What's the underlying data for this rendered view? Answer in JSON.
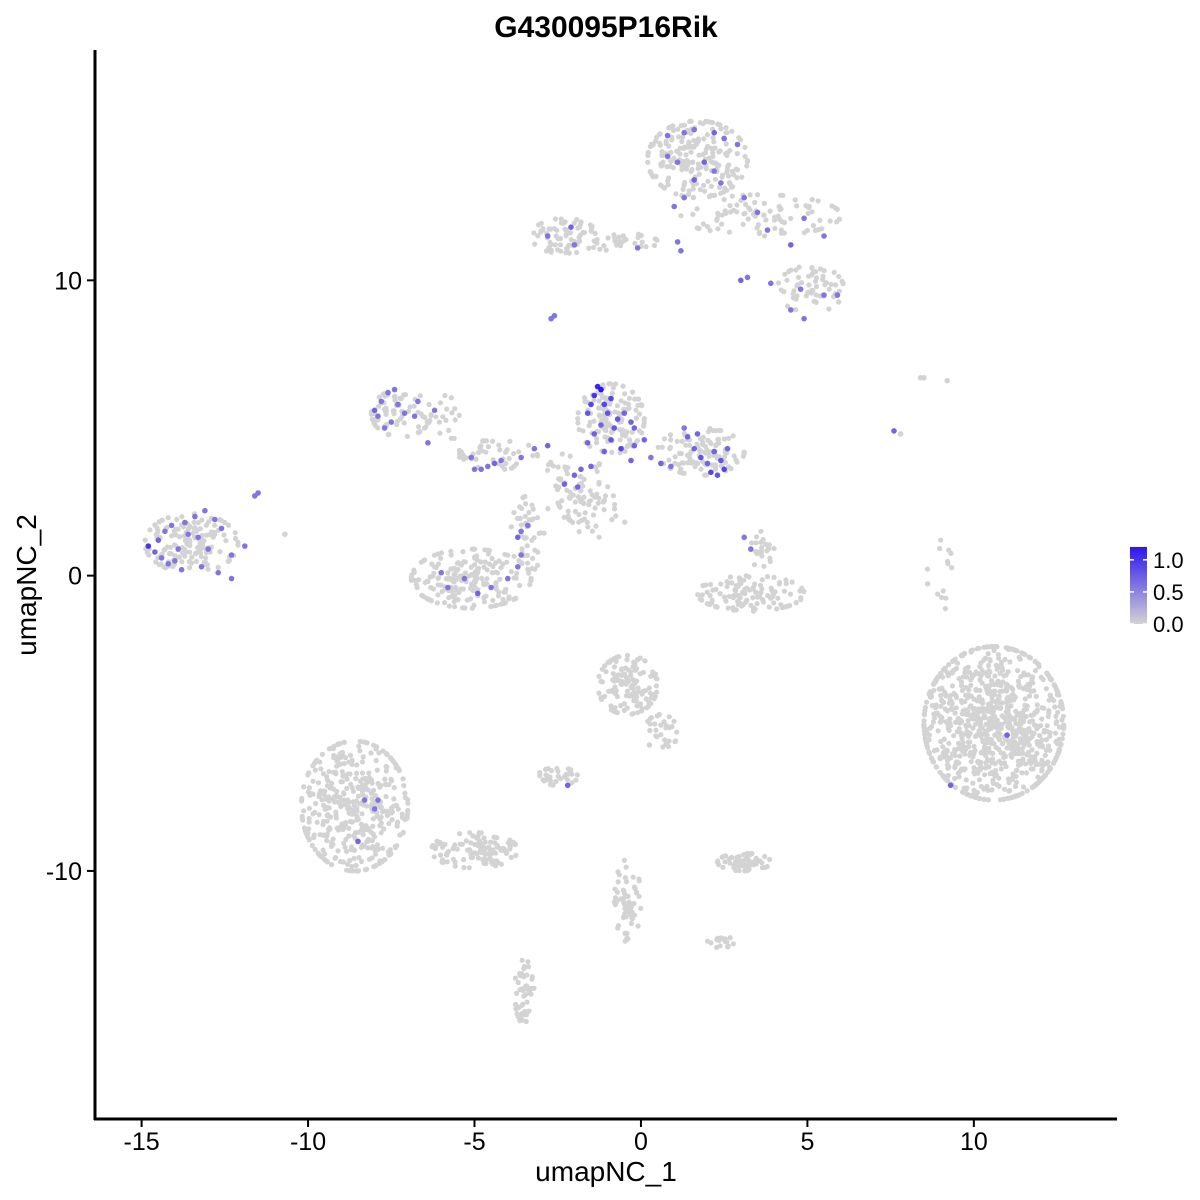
{
  "chart_data": {
    "type": "scatter",
    "title": "G430095P16Rik",
    "xlabel": "umapNC_1",
    "ylabel": "umapNC_2",
    "xlim": [
      -16.4,
      14.3
    ],
    "ylim": [
      -18.4,
      17.8
    ],
    "x_ticks": [
      -15,
      -10,
      -5,
      0,
      5,
      10
    ],
    "x_tick_labels": [
      "-15",
      "-10",
      "-5",
      "0",
      "5",
      "10"
    ],
    "y_ticks": [
      -10,
      0,
      10
    ],
    "y_tick_labels": [
      "-10",
      "0",
      "10"
    ],
    "grid": false,
    "legend_position": "right",
    "color_scale": {
      "low": "#d3d3d3",
      "high": "#2c16f0",
      "range": [
        0,
        1.2
      ],
      "breaks": [
        0.0,
        0.5,
        1.0
      ],
      "break_labels": [
        "0.0",
        "0.5",
        "1.0"
      ]
    },
    "background_clusters": [
      {
        "cx": 1.7,
        "cy": 14.1,
        "rx": 1.5,
        "ry": 1.3,
        "n": 210
      },
      {
        "cx": 3.6,
        "cy": 12.2,
        "rx": 2.4,
        "ry": 0.7,
        "n": 90
      },
      {
        "cx": 5.1,
        "cy": 9.7,
        "rx": 1.0,
        "ry": 0.8,
        "n": 60
      },
      {
        "cx": -2.3,
        "cy": 11.5,
        "rx": 1.0,
        "ry": 0.6,
        "n": 70
      },
      {
        "cx": -0.6,
        "cy": 11.3,
        "rx": 1.1,
        "ry": 0.3,
        "n": 30
      },
      {
        "cx": -7.2,
        "cy": 5.5,
        "rx": 0.9,
        "ry": 0.8,
        "n": 70
      },
      {
        "cx": -13.5,
        "cy": 1.1,
        "rx": 1.4,
        "ry": 1.0,
        "n": 150
      },
      {
        "cx": -5.1,
        "cy": -0.1,
        "rx": 1.8,
        "ry": 1.0,
        "n": 200
      },
      {
        "cx": -3.4,
        "cy": 1.4,
        "rx": 0.5,
        "ry": 1.3,
        "n": 45
      },
      {
        "cx": -0.9,
        "cy": 5.3,
        "rx": 1.0,
        "ry": 1.2,
        "n": 130
      },
      {
        "cx": 1.8,
        "cy": 4.2,
        "rx": 1.3,
        "ry": 0.8,
        "n": 110
      },
      {
        "cx": -2.0,
        "cy": 3.0,
        "rx": 1.0,
        "ry": 1.2,
        "n": 60
      },
      {
        "cx": 3.3,
        "cy": -0.6,
        "rx": 1.6,
        "ry": 0.6,
        "n": 120
      },
      {
        "cx": 3.6,
        "cy": 0.9,
        "rx": 0.4,
        "ry": 0.6,
        "n": 25
      },
      {
        "cx": 10.6,
        "cy": -5.0,
        "rx": 2.1,
        "ry": 2.6,
        "n": 900
      },
      {
        "cx": -0.4,
        "cy": -3.7,
        "rx": 0.9,
        "ry": 1.0,
        "n": 140
      },
      {
        "cx": 0.6,
        "cy": -5.3,
        "rx": 0.5,
        "ry": 0.6,
        "n": 30
      },
      {
        "cx": -8.6,
        "cy": -7.8,
        "rx": 1.6,
        "ry": 2.2,
        "n": 420
      },
      {
        "cx": -5.0,
        "cy": -9.3,
        "rx": 1.3,
        "ry": 0.6,
        "n": 110
      },
      {
        "cx": 3.1,
        "cy": -9.7,
        "rx": 0.8,
        "ry": 0.3,
        "n": 60
      },
      {
        "cx": -2.5,
        "cy": -6.8,
        "rx": 0.6,
        "ry": 0.3,
        "n": 30
      },
      {
        "cx": -3.5,
        "cy": -14.1,
        "rx": 0.3,
        "ry": 1.1,
        "n": 50
      },
      {
        "cx": -0.4,
        "cy": -11.0,
        "rx": 0.4,
        "ry": 1.4,
        "n": 60
      },
      {
        "cx": 2.4,
        "cy": -12.4,
        "rx": 0.4,
        "ry": 0.2,
        "n": 18
      },
      {
        "cx": -4.3,
        "cy": 4.1,
        "rx": 1.2,
        "ry": 0.5,
        "n": 45
      },
      {
        "cx": -5.9,
        "cy": 5.3,
        "rx": 0.5,
        "ry": 0.8,
        "n": 16
      },
      {
        "cx": 9.0,
        "cy": 0.0,
        "rx": 0.4,
        "ry": 1.2,
        "n": 14
      },
      {
        "cx": -1.3,
        "cy": 2.2,
        "rx": 0.9,
        "ry": 0.9,
        "n": 30
      }
    ],
    "points": [
      {
        "x": 8.5,
        "y": 6.7,
        "v": 0
      },
      {
        "x": 8.4,
        "y": 6.7,
        "v": 0
      },
      {
        "x": 7.6,
        "y": 4.9,
        "v": 0.7
      },
      {
        "x": 7.8,
        "y": 4.8,
        "v": 0
      },
      {
        "x": 9.2,
        "y": 6.6,
        "v": 0
      },
      {
        "x": 9.9,
        "y": -6.0,
        "v": 0
      },
      {
        "x": -11.5,
        "y": 2.8,
        "v": 0.6
      },
      {
        "x": -11.6,
        "y": 2.7,
        "v": 0.6
      },
      {
        "x": -10.7,
        "y": 1.4,
        "v": 0
      },
      {
        "x": -11.9,
        "y": 1.0,
        "v": 0.6
      },
      {
        "x": -12.3,
        "y": -0.1,
        "v": 0.6
      },
      {
        "x": -12.7,
        "y": 0.1,
        "v": 0.6
      },
      {
        "x": -13.8,
        "y": 0.2,
        "v": 0.6
      },
      {
        "x": -14.2,
        "y": 0.4,
        "v": 0.6
      },
      {
        "x": -14.6,
        "y": 0.8,
        "v": 0.7
      },
      {
        "x": -14.8,
        "y": 1.0,
        "v": 1.0
      },
      {
        "x": -14.3,
        "y": 1.5,
        "v": 0.6
      },
      {
        "x": -14.1,
        "y": 1.7,
        "v": 0.6
      },
      {
        "x": -13.7,
        "y": 1.8,
        "v": 0.6
      },
      {
        "x": -13.4,
        "y": 2.0,
        "v": 0.6
      },
      {
        "x": -13.1,
        "y": 2.2,
        "v": 0.6
      },
      {
        "x": -12.8,
        "y": 1.9,
        "v": 0.6
      },
      {
        "x": -13.3,
        "y": 1.3,
        "v": 0.6
      },
      {
        "x": -13.9,
        "y": 0.9,
        "v": 0.6
      },
      {
        "x": -14.4,
        "y": 0.6,
        "v": 0.6
      },
      {
        "x": -13.0,
        "y": 0.9,
        "v": 0.6
      },
      {
        "x": -12.3,
        "y": 0.7,
        "v": 0.6
      },
      {
        "x": -14.5,
        "y": 1.2,
        "v": 0.7
      },
      {
        "x": -13.6,
        "y": 1.4,
        "v": 0.6
      },
      {
        "x": -13.2,
        "y": 0.3,
        "v": 0.6
      },
      {
        "x": -12.6,
        "y": 1.6,
        "v": 0.6
      },
      {
        "x": -14.0,
        "y": 0.5,
        "v": 0.6
      },
      {
        "x": -7.6,
        "y": 6.2,
        "v": 0.6
      },
      {
        "x": -7.4,
        "y": 6.3,
        "v": 0.6
      },
      {
        "x": -7.8,
        "y": 5.9,
        "v": 0.6
      },
      {
        "x": -8.0,
        "y": 5.6,
        "v": 0.7
      },
      {
        "x": -7.9,
        "y": 5.4,
        "v": 0.6
      },
      {
        "x": -7.5,
        "y": 5.2,
        "v": 0.6
      },
      {
        "x": -7.1,
        "y": 5.5,
        "v": 0.6
      },
      {
        "x": -6.8,
        "y": 5.4,
        "v": 0.6
      },
      {
        "x": -6.7,
        "y": 5.9,
        "v": 0.6
      },
      {
        "x": -7.3,
        "y": 5.8,
        "v": 0.6
      },
      {
        "x": -7.7,
        "y": 5.0,
        "v": 0.6
      },
      {
        "x": -6.2,
        "y": 5.6,
        "v": 0.6
      },
      {
        "x": -6.4,
        "y": 4.5,
        "v": 0.6
      },
      {
        "x": -5.1,
        "y": 4.0,
        "v": 0.6
      },
      {
        "x": -5.0,
        "y": 3.6,
        "v": 0.6
      },
      {
        "x": -4.8,
        "y": 3.6,
        "v": 0.6
      },
      {
        "x": -4.6,
        "y": 3.7,
        "v": 0.6
      },
      {
        "x": -4.4,
        "y": 3.8,
        "v": 0.7
      },
      {
        "x": -4.2,
        "y": 3.9,
        "v": 0.6
      },
      {
        "x": -3.6,
        "y": 4.0,
        "v": 0.6
      },
      {
        "x": -3.2,
        "y": 4.3,
        "v": 0.6
      },
      {
        "x": -2.8,
        "y": 4.4,
        "v": 0.7
      },
      {
        "x": -3.4,
        "y": 1.7,
        "v": 0.6
      },
      {
        "x": -3.6,
        "y": 1.5,
        "v": 0.6
      },
      {
        "x": -3.7,
        "y": 1.3,
        "v": 0.7
      },
      {
        "x": -3.6,
        "y": 0.7,
        "v": 0.6
      },
      {
        "x": -3.7,
        "y": 0.3,
        "v": 0.6
      },
      {
        "x": -4.0,
        "y": -0.1,
        "v": 0.6
      },
      {
        "x": -4.5,
        "y": -0.4,
        "v": 0.6
      },
      {
        "x": -4.9,
        "y": -0.6,
        "v": 0.7
      },
      {
        "x": -5.3,
        "y": -0.1,
        "v": 0.6
      },
      {
        "x": -5.8,
        "y": -0.4,
        "v": 0.6
      },
      {
        "x": -6.0,
        "y": 0.1,
        "v": 0.6
      },
      {
        "x": -1.3,
        "y": 6.4,
        "v": 1.1
      },
      {
        "x": -1.2,
        "y": 6.3,
        "v": 1.2
      },
      {
        "x": -1.4,
        "y": 6.1,
        "v": 1.0
      },
      {
        "x": -1.5,
        "y": 5.8,
        "v": 0.9
      },
      {
        "x": -1.1,
        "y": 5.8,
        "v": 0.9
      },
      {
        "x": -0.9,
        "y": 6.0,
        "v": 0.9
      },
      {
        "x": -1.6,
        "y": 5.5,
        "v": 0.8
      },
      {
        "x": -1.0,
        "y": 5.5,
        "v": 0.8
      },
      {
        "x": -0.7,
        "y": 5.3,
        "v": 0.8
      },
      {
        "x": -0.5,
        "y": 5.5,
        "v": 0.7
      },
      {
        "x": -0.3,
        "y": 5.2,
        "v": 0.7
      },
      {
        "x": -0.2,
        "y": 5.0,
        "v": 0.7
      },
      {
        "x": -0.8,
        "y": 5.0,
        "v": 0.8
      },
      {
        "x": -1.2,
        "y": 5.1,
        "v": 0.7
      },
      {
        "x": -1.4,
        "y": 4.8,
        "v": 0.7
      },
      {
        "x": -0.9,
        "y": 4.6,
        "v": 0.8
      },
      {
        "x": -0.6,
        "y": 4.3,
        "v": 0.9
      },
      {
        "x": -0.2,
        "y": 4.4,
        "v": 0.7
      },
      {
        "x": 0.1,
        "y": 4.6,
        "v": 0.7
      },
      {
        "x": -1.1,
        "y": 4.2,
        "v": 0.7
      },
      {
        "x": -1.5,
        "y": 3.7,
        "v": 0.7
      },
      {
        "x": -1.8,
        "y": 3.6,
        "v": 0.7
      },
      {
        "x": -2.0,
        "y": 3.4,
        "v": 0.7
      },
      {
        "x": -1.9,
        "y": 3.0,
        "v": 0.7
      },
      {
        "x": -2.3,
        "y": 3.1,
        "v": 0.7
      },
      {
        "x": -1.6,
        "y": 4.5,
        "v": 0.7
      },
      {
        "x": -0.3,
        "y": 3.9,
        "v": 0.7
      },
      {
        "x": 0.3,
        "y": 4.0,
        "v": 0.6
      },
      {
        "x": 0.6,
        "y": 3.8,
        "v": 0.7
      },
      {
        "x": 0.9,
        "y": 3.7,
        "v": 0.6
      },
      {
        "x": 1.4,
        "y": 4.7,
        "v": 0.7
      },
      {
        "x": 1.6,
        "y": 4.3,
        "v": 0.7
      },
      {
        "x": 1.8,
        "y": 4.0,
        "v": 0.8
      },
      {
        "x": 2.0,
        "y": 3.8,
        "v": 0.7
      },
      {
        "x": 2.2,
        "y": 4.2,
        "v": 0.7
      },
      {
        "x": 2.4,
        "y": 3.9,
        "v": 0.8
      },
      {
        "x": 2.1,
        "y": 3.5,
        "v": 0.9
      },
      {
        "x": 2.5,
        "y": 3.6,
        "v": 0.9
      },
      {
        "x": 2.6,
        "y": 4.3,
        "v": 0.7
      },
      {
        "x": 1.7,
        "y": 4.8,
        "v": 0.7
      },
      {
        "x": 2.3,
        "y": 3.4,
        "v": 0.8
      },
      {
        "x": 1.3,
        "y": 5.0,
        "v": 0.6
      },
      {
        "x": 1.6,
        "y": 15.1,
        "v": 0.6
      },
      {
        "x": 1.3,
        "y": 15.0,
        "v": 0.6
      },
      {
        "x": 0.8,
        "y": 14.9,
        "v": 0.6
      },
      {
        "x": 2.2,
        "y": 15.0,
        "v": 0.7
      },
      {
        "x": 2.5,
        "y": 14.8,
        "v": 0.6
      },
      {
        "x": 2.9,
        "y": 14.6,
        "v": 0.6
      },
      {
        "x": 0.8,
        "y": 14.2,
        "v": 0.6
      },
      {
        "x": 1.1,
        "y": 14.0,
        "v": 0.6
      },
      {
        "x": 1.9,
        "y": 14.0,
        "v": 0.7
      },
      {
        "x": 2.2,
        "y": 13.7,
        "v": 0.6
      },
      {
        "x": 1.6,
        "y": 13.4,
        "v": 0.7
      },
      {
        "x": 2.4,
        "y": 13.3,
        "v": 0.6
      },
      {
        "x": 1.3,
        "y": 12.8,
        "v": 0.6
      },
      {
        "x": 1.0,
        "y": 12.5,
        "v": 0.6
      },
      {
        "x": 3.1,
        "y": 12.8,
        "v": 0.6
      },
      {
        "x": 3.5,
        "y": 12.3,
        "v": 0.6
      },
      {
        "x": 3.8,
        "y": 11.7,
        "v": 0.6
      },
      {
        "x": 4.5,
        "y": 11.2,
        "v": 0.7
      },
      {
        "x": 4.9,
        "y": 12.1,
        "v": 0.6
      },
      {
        "x": 5.5,
        "y": 11.5,
        "v": 0.6
      },
      {
        "x": 1.1,
        "y": 11.3,
        "v": 0.6
      },
      {
        "x": 1.2,
        "y": 11.0,
        "v": 0.6
      },
      {
        "x": 3.0,
        "y": 10.0,
        "v": 0.7
      },
      {
        "x": 3.2,
        "y": 10.1,
        "v": 0.6
      },
      {
        "x": 3.9,
        "y": 9.9,
        "v": 0.6
      },
      {
        "x": 4.8,
        "y": 9.7,
        "v": 0.6
      },
      {
        "x": 5.5,
        "y": 9.5,
        "v": 0.6
      },
      {
        "x": 5.9,
        "y": 9.5,
        "v": 0.6
      },
      {
        "x": 4.5,
        "y": 9.0,
        "v": 0.6
      },
      {
        "x": 4.9,
        "y": 8.7,
        "v": 0.6
      },
      {
        "x": -2.1,
        "y": 11.8,
        "v": 0.7
      },
      {
        "x": -2.8,
        "y": 11.5,
        "v": 0.6
      },
      {
        "x": -2.0,
        "y": 11.2,
        "v": 0.6
      },
      {
        "x": -0.1,
        "y": 11.1,
        "v": 0.6
      },
      {
        "x": -2.7,
        "y": 8.7,
        "v": 0.6
      },
      {
        "x": -2.6,
        "y": 8.8,
        "v": 0.6
      },
      {
        "x": 3.1,
        "y": 1.3,
        "v": 0.6
      },
      {
        "x": 3.3,
        "y": 0.9,
        "v": 0.6
      },
      {
        "x": -2.2,
        "y": -7.1,
        "v": 0.7
      },
      {
        "x": -8.0,
        "y": -7.9,
        "v": 0.6
      },
      {
        "x": -7.9,
        "y": -7.6,
        "v": 0.6
      },
      {
        "x": -8.3,
        "y": -7.6,
        "v": 0.6
      },
      {
        "x": -8.5,
        "y": -9.0,
        "v": 0.7
      },
      {
        "x": 9.3,
        "y": -7.1,
        "v": 0.7
      },
      {
        "x": 11.0,
        "y": -5.4,
        "v": 0.7
      }
    ]
  }
}
